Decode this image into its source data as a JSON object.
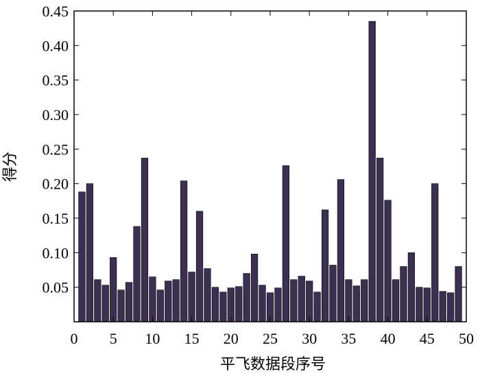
{
  "chart_data": {
    "type": "bar",
    "title": "",
    "xlabel": "平飞数据段序号",
    "ylabel": "得分",
    "xlim": [
      0,
      50
    ],
    "ylim": [
      0,
      0.45
    ],
    "x_ticks": [
      0,
      5,
      10,
      15,
      20,
      25,
      30,
      35,
      40,
      45,
      50
    ],
    "x_tick_labels": [
      "0",
      "5",
      "10",
      "15",
      "20",
      "25",
      "30",
      "35",
      "40",
      "45",
      "50"
    ],
    "y_ticks": [
      0.05,
      0.1,
      0.15,
      0.2,
      0.25,
      0.3,
      0.35,
      0.4,
      0.45
    ],
    "y_tick_labels": [
      "0.05",
      "0.10",
      "0.15",
      "0.20",
      "0.25",
      "0.30",
      "0.35",
      "0.40",
      "0.45"
    ],
    "bar_color": "#3b2f52",
    "grid": false,
    "legend": "none",
    "categories": [
      1,
      2,
      3,
      4,
      5,
      6,
      7,
      8,
      9,
      10,
      11,
      12,
      13,
      14,
      15,
      16,
      17,
      18,
      19,
      20,
      21,
      22,
      23,
      24,
      25,
      26,
      27,
      28,
      29,
      30,
      31,
      32,
      33,
      34,
      35,
      36,
      37,
      38,
      39,
      40,
      41,
      42,
      43,
      44,
      45,
      46,
      47,
      48,
      49
    ],
    "values": [
      0.188,
      0.2,
      0.061,
      0.053,
      0.093,
      0.046,
      0.057,
      0.138,
      0.237,
      0.065,
      0.046,
      0.059,
      0.061,
      0.204,
      0.072,
      0.16,
      0.077,
      0.05,
      0.043,
      0.049,
      0.051,
      0.07,
      0.098,
      0.053,
      0.042,
      0.049,
      0.226,
      0.061,
      0.066,
      0.059,
      0.043,
      0.162,
      0.082,
      0.206,
      0.061,
      0.052,
      0.061,
      0.435,
      0.237,
      0.176,
      0.061,
      0.08,
      0.1,
      0.05,
      0.049,
      0.2,
      0.044,
      0.042,
      0.08
    ]
  }
}
